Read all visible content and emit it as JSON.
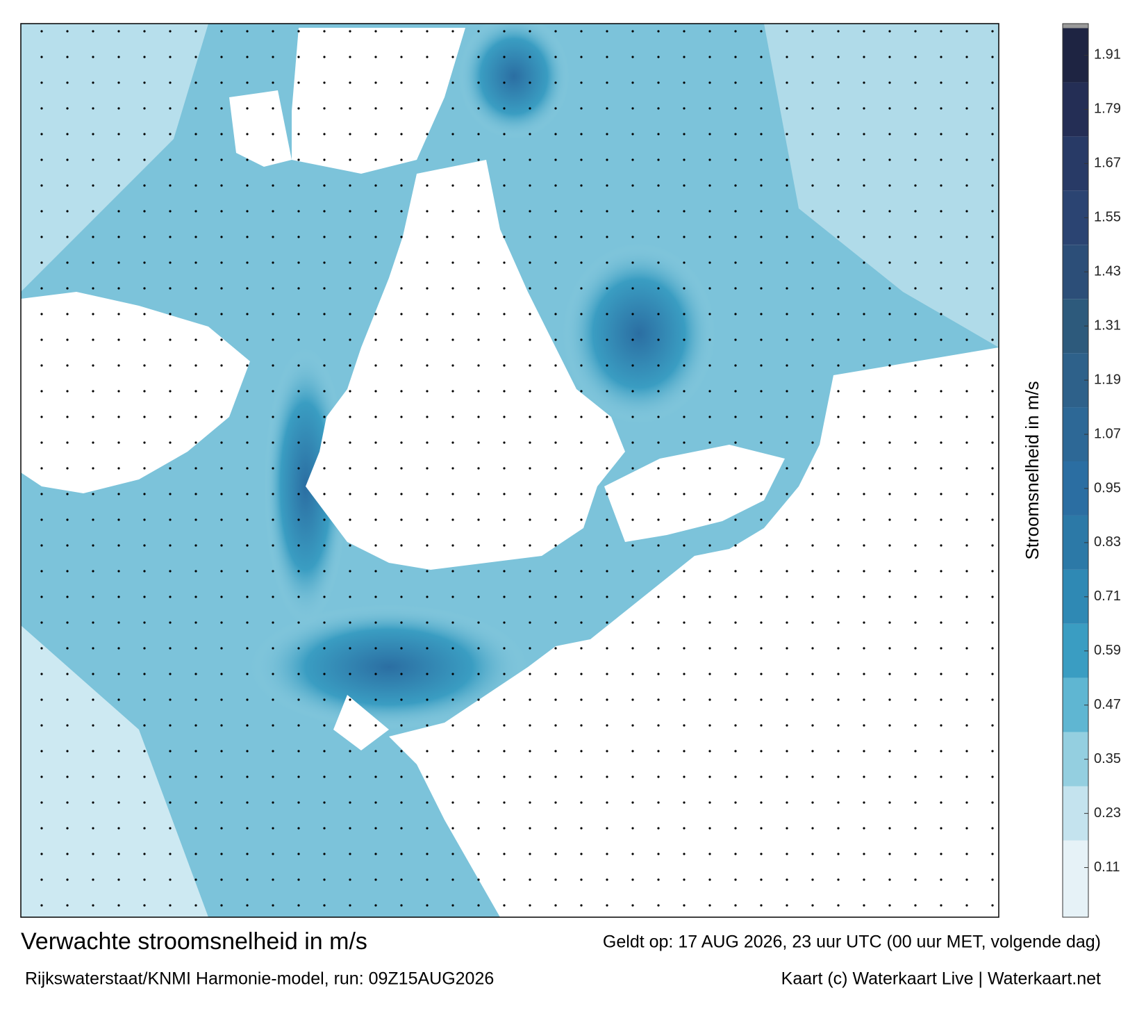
{
  "map": {
    "title": "Verwachte stroomsnelheid in m/s",
    "valid_time": "Geldt op: 17 AUG 2026, 23 uur UTC (00 uur MET, volgende dag)",
    "source": "Rijkswaterstaat/KNMI Harmonie-model, run: 09Z15AUG2026",
    "credit": "Kaart (c) Waterkaart Live | Waterkaart.net",
    "colorbar": {
      "label": "Stroomsnelheid in m/s",
      "lim": [
        0,
        1.98
      ],
      "ticks": [
        0.11,
        0.23,
        0.35,
        0.47,
        0.59,
        0.71,
        0.83,
        0.95,
        1.07,
        1.19,
        1.31,
        1.43,
        1.55,
        1.67,
        1.79,
        1.91
      ],
      "colors": [
        "#e6f2f7",
        "#c4e3ee",
        "#94cfe0",
        "#5fb6d2",
        "#3a9dc2",
        "#2f89b4",
        "#2c79a7",
        "#2b6ea2",
        "#2d6896",
        "#2e618a",
        "#2d5a7c",
        "#2c4e78",
        "#2b4472",
        "#283a66",
        "#242e55",
        "#1e2442"
      ]
    }
  }
}
